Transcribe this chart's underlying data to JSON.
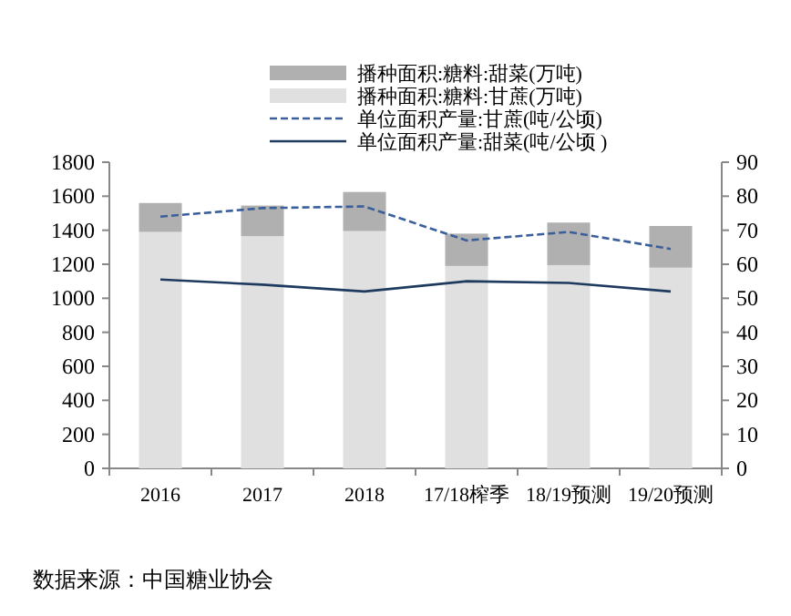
{
  "chart_data": {
    "type": "bar",
    "stacked": true,
    "legend": "top",
    "categories": [
      "2016",
      "2017",
      "2018",
      "17/18榨季",
      "18/19预测",
      "19/20预测"
    ],
    "series": [
      {
        "name": "播种面积:糖料:甘蔗(万吨)",
        "color": "#e0e0e0",
        "values": [
          1390,
          1365,
          1395,
          1190,
          1195,
          1180
        ]
      },
      {
        "name": "播种面积:糖料:甜菜(万吨)",
        "color": "#b0b0b0",
        "values": [
          170,
          180,
          230,
          190,
          250,
          245
        ]
      },
      {
        "name": "单位面积产量:甘蔗(吨/公顷)",
        "type": "line",
        "axis": "y2",
        "line_style": "dashed",
        "color": "#3a5f9a",
        "values": [
          74,
          76.5,
          77,
          67,
          69.5,
          64.5
        ]
      },
      {
        "name": "单位面积产量:甜菜(吨/公顷 )",
        "type": "line",
        "axis": "y2",
        "line_style": "solid",
        "color": "#1f3a5f",
        "values": [
          55.5,
          54,
          52,
          55,
          54.5,
          52
        ]
      }
    ],
    "ylim": [
      0,
      1800
    ],
    "yticks": [
      0,
      200,
      400,
      600,
      800,
      1000,
      1200,
      1400,
      1600,
      1800
    ],
    "y2lim": [
      0,
      90
    ],
    "y2ticks": [
      0,
      10,
      20,
      30,
      40,
      50,
      60,
      70,
      80,
      90
    ],
    "annotations": [
      "数据来源：中国糖业协会"
    ]
  }
}
